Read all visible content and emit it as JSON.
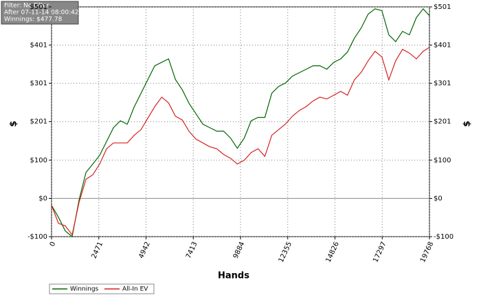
{
  "chart_data": {
    "type": "line",
    "annotations": [
      "Filter: No Filter",
      "After 07-11-14 08:00:42",
      "Winnings: $477.78"
    ],
    "xlabel": "Hands",
    "ylabel": "$",
    "x": [
      0,
      360,
      720,
      1080,
      1440,
      1800,
      2160,
      2520,
      2880,
      3240,
      3600,
      3960,
      4320,
      4680,
      5040,
      5400,
      5760,
      6120,
      6480,
      6840,
      7200,
      7560,
      7920,
      8280,
      8640,
      9000,
      9360,
      9720,
      10080,
      10440,
      10800,
      11160,
      11520,
      11880,
      12240,
      12600,
      12960,
      13320,
      13680,
      14040,
      14400,
      14760,
      15120,
      15480,
      15840,
      16200,
      16560,
      16920,
      17280,
      17640,
      18000,
      18360,
      18720,
      19080,
      19440,
      19768
    ],
    "series": [
      {
        "name": "Winnings",
        "color": "#006400",
        "values": [
          -18,
          -49,
          -85,
          -100,
          -4,
          68,
          90,
          113,
          149,
          185,
          203,
          194,
          239,
          275,
          311,
          347,
          356,
          365,
          311,
          284,
          248,
          221,
          194,
          185,
          176,
          176,
          158,
          131,
          158,
          203,
          212,
          212,
          275,
          293,
          302,
          320,
          329,
          338,
          347,
          347,
          338,
          356,
          365,
          383,
          419,
          446,
          482,
          496,
          491,
          428,
          410,
          437,
          428,
          473,
          496,
          477.78
        ]
      },
      {
        "name": "All-In EV",
        "color": "#d42020",
        "values": [
          -18,
          -65,
          -72,
          -95,
          -10,
          50,
          62,
          90,
          130,
          145,
          145,
          145,
          165,
          180,
          210,
          240,
          265,
          250,
          215,
          205,
          175,
          155,
          145,
          135,
          130,
          115,
          105,
          90,
          100,
          120,
          130,
          110,
          165,
          180,
          195,
          215,
          230,
          240,
          255,
          265,
          260,
          270,
          280,
          270,
          310,
          330,
          360,
          385,
          370,
          310,
          360,
          390,
          380,
          365,
          385,
          395
        ]
      }
    ],
    "xlim": [
      0,
      19768
    ],
    "xticks": [
      0,
      2471,
      4942,
      7413,
      9884,
      12355,
      14826,
      17297,
      19768
    ],
    "ylim": [
      -100,
      501
    ],
    "yticks": [
      {
        "value": -100,
        "label": "-$100"
      },
      {
        "value": 0,
        "label": "$0"
      },
      {
        "value": 100,
        "label": "$100"
      },
      {
        "value": 201,
        "label": "$201"
      },
      {
        "value": 301,
        "label": "$301"
      },
      {
        "value": 401,
        "label": "$401"
      },
      {
        "value": 501,
        "label": "$501"
      }
    ],
    "grid": true
  }
}
